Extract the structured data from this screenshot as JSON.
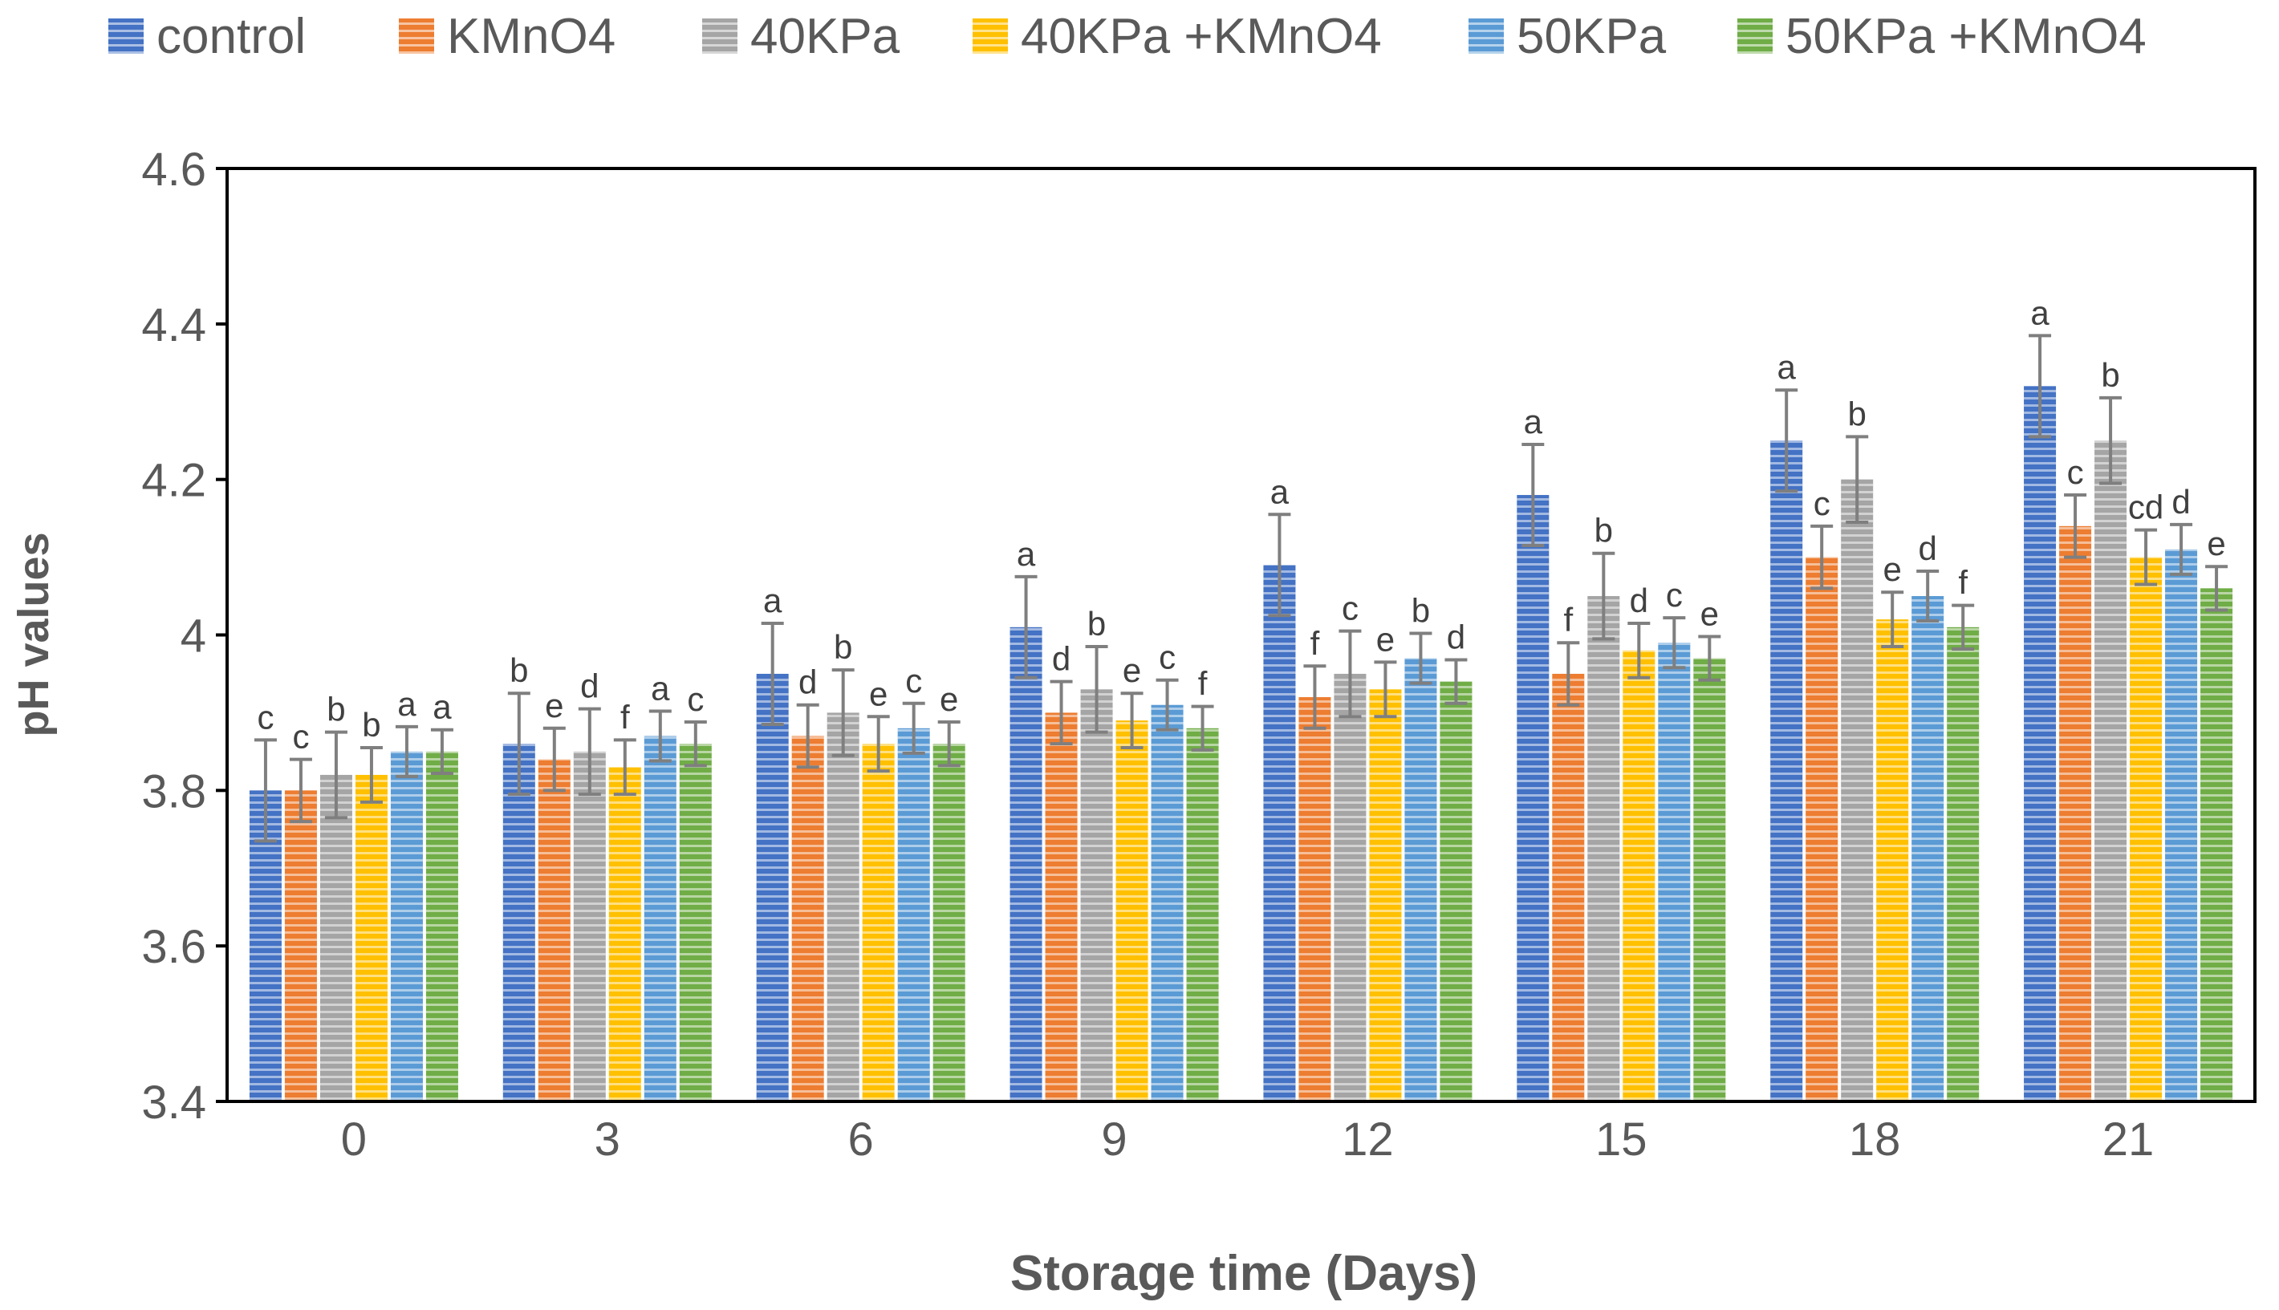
{
  "chart_data": {
    "type": "bar",
    "title": "",
    "xlabel": "Storage time (Days)",
    "ylabel": "pH values",
    "ylim": [
      3.4,
      4.6
    ],
    "yticks": [
      3.4,
      3.6,
      3.8,
      4,
      4.2,
      4.4,
      4.6
    ],
    "ytick_labels": [
      "3.4",
      "3.6",
      "3.8",
      "4",
      "4.2",
      "4.4",
      "4.6"
    ],
    "categories": [
      "0",
      "3",
      "6",
      "9",
      "12",
      "15",
      "18",
      "21"
    ],
    "legend_position": "top",
    "grid": false,
    "series": [
      {
        "name": "control",
        "color": "#4472C4",
        "values": [
          3.8,
          3.86,
          3.95,
          4.01,
          4.09,
          4.18,
          4.25,
          4.32
        ],
        "errors": [
          0.065,
          0.065,
          0.065,
          0.065,
          0.065,
          0.065,
          0.065,
          0.065
        ],
        "letters": [
          "c",
          "b",
          "a",
          "a",
          "a",
          "a",
          "a",
          "a"
        ]
      },
      {
        "name": "KMnO4",
        "color": "#ED7D31",
        "values": [
          3.8,
          3.84,
          3.87,
          3.9,
          3.92,
          3.95,
          4.1,
          4.14
        ],
        "errors": [
          0.04,
          0.04,
          0.04,
          0.04,
          0.04,
          0.04,
          0.04,
          0.04
        ],
        "letters": [
          "c",
          "e",
          "d",
          "d",
          "f",
          "f",
          "c",
          "c"
        ]
      },
      {
        "name": "40KPa",
        "color": "#A5A5A5",
        "values": [
          3.82,
          3.85,
          3.9,
          3.93,
          3.95,
          4.05,
          4.2,
          4.25
        ],
        "errors": [
          0.055,
          0.055,
          0.055,
          0.055,
          0.055,
          0.055,
          0.055,
          0.055
        ],
        "letters": [
          "b",
          "d",
          "b",
          "b",
          "c",
          "b",
          "b",
          "b"
        ]
      },
      {
        "name": "40KPa +KMnO4",
        "color": "#FFC000",
        "values": [
          3.82,
          3.83,
          3.86,
          3.89,
          3.93,
          3.98,
          4.02,
          4.1
        ],
        "errors": [
          0.035,
          0.035,
          0.035,
          0.035,
          0.035,
          0.035,
          0.035,
          0.035
        ],
        "letters": [
          "b",
          "f",
          "e",
          "e",
          "e",
          "d",
          "e",
          "cd"
        ]
      },
      {
        "name": "50KPa",
        "color": "#5B9BD5",
        "values": [
          3.85,
          3.87,
          3.88,
          3.91,
          3.97,
          3.99,
          4.05,
          4.11
        ],
        "errors": [
          0.032,
          0.032,
          0.032,
          0.032,
          0.032,
          0.032,
          0.032,
          0.032
        ],
        "letters": [
          "a",
          "a",
          "c",
          "c",
          "b",
          "c",
          "d",
          "d"
        ]
      },
      {
        "name": "50KPa +KMnO4",
        "color": "#70AD47",
        "values": [
          3.85,
          3.86,
          3.86,
          3.88,
          3.94,
          3.97,
          4.01,
          4.06
        ],
        "errors": [
          0.028,
          0.028,
          0.028,
          0.028,
          0.028,
          0.028,
          0.028,
          0.028
        ],
        "letters": [
          "a",
          "c",
          "e",
          "f",
          "d",
          "e",
          "f",
          "e"
        ]
      }
    ]
  }
}
